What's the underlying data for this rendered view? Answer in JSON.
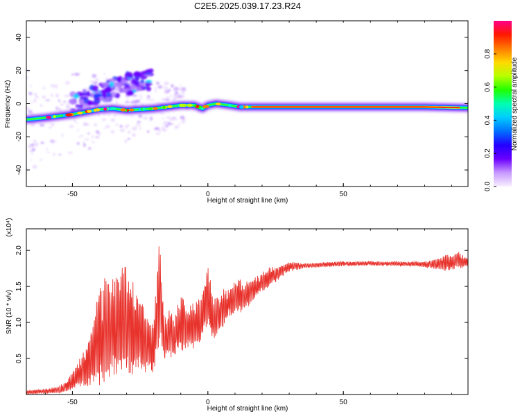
{
  "figure": {
    "title": "C2E5.2025.039.17.23.R24"
  },
  "chart_data": [
    {
      "type": "heatmap",
      "xlabel": "Height of straight line (km)",
      "ylabel": "Frequency (Hz)",
      "xlim": [
        -67,
        96
      ],
      "ylim": [
        -50,
        50
      ],
      "xticks": [
        -50,
        0,
        50
      ],
      "yticks": [
        -40,
        -20,
        0,
        20,
        40
      ],
      "grid": false,
      "colorbar": {
        "label": "Normalized spectral amplitude",
        "range": [
          0,
          1
        ],
        "ticks": [
          "0.0",
          "0.2",
          "0.4",
          "0.6",
          "0.8"
        ],
        "colormap": [
          "#f8f0ff",
          "#c899ff",
          "#6a00ff",
          "#2200ff",
          "#0070ff",
          "#00ccff",
          "#00ffb0",
          "#20ff00",
          "#b8ff00",
          "#ffd800",
          "#ff7a00",
          "#ff1800",
          "#ff0088"
        ]
      },
      "main_trace": [
        {
          "x": -66,
          "f": -9.5
        },
        {
          "x": -60,
          "f": -8.5
        },
        {
          "x": -55,
          "f": -7.5
        },
        {
          "x": -50,
          "f": -6.5
        },
        {
          "x": -45,
          "f": -5
        },
        {
          "x": -40,
          "f": -3.5
        },
        {
          "x": -35,
          "f": -3
        },
        {
          "x": -30,
          "f": -4
        },
        {
          "x": -25,
          "f": -3.5
        },
        {
          "x": -20,
          "f": -3
        },
        {
          "x": -15,
          "f": -2
        },
        {
          "x": -10,
          "f": -1
        },
        {
          "x": -5,
          "f": -1
        },
        {
          "x": -2,
          "f": -3
        },
        {
          "x": 0,
          "f": -1
        },
        {
          "x": 3,
          "f": 0
        },
        {
          "x": 8,
          "f": -1
        },
        {
          "x": 12,
          "f": -2
        },
        {
          "x": 20,
          "f": -2
        },
        {
          "x": 40,
          "f": -2
        },
        {
          "x": 60,
          "f": -2
        },
        {
          "x": 80,
          "f": -2
        },
        {
          "x": 96,
          "f": -2.5
        }
      ],
      "upper_branch": [
        {
          "x": -50,
          "f": 0
        },
        {
          "x": -45,
          "f": 2
        },
        {
          "x": -40,
          "f": 6
        },
        {
          "x": -35,
          "f": 9
        },
        {
          "x": -30,
          "f": 12
        },
        {
          "x": -25,
          "f": 13
        },
        {
          "x": -21,
          "f": 14
        }
      ]
    },
    {
      "type": "line",
      "xlabel": "Height of straight line (km)",
      "ylabel": "SNR (10 * v/v)",
      "y_multiplier": "(x10⁴)",
      "xlim": [
        -67,
        96
      ],
      "ylim": [
        0,
        2.3
      ],
      "xticks": [
        -50,
        0,
        50
      ],
      "yticks": [
        "0.5",
        "1.0",
        "1.5",
        "2.0"
      ],
      "grid": false,
      "series_color": "#e8322c",
      "envelope_x": [
        -67,
        -60,
        -55,
        -52,
        -48,
        -45,
        -42,
        -40,
        -37,
        -35,
        -32,
        -30,
        -27,
        -25,
        -22,
        -20,
        -18,
        -16,
        -14,
        -12,
        -10,
        -8,
        -6,
        -4,
        -2,
        0,
        2,
        5,
        8,
        10,
        13,
        15,
        18,
        20,
        23,
        25,
        28,
        30,
        35,
        40,
        45,
        50,
        60,
        70,
        80,
        85,
        88,
        90,
        92,
        94,
        96
      ],
      "envelope_high": [
        0.06,
        0.08,
        0.12,
        0.22,
        0.45,
        0.7,
        1.1,
        1.6,
        1.65,
        1.75,
        1.9,
        1.95,
        1.5,
        1.4,
        1.1,
        1.0,
        2.3,
        1.05,
        1.25,
        1.1,
        1.5,
        1.2,
        1.3,
        1.35,
        1.4,
        1.85,
        1.3,
        1.45,
        1.5,
        1.6,
        1.6,
        1.6,
        1.65,
        1.7,
        1.8,
        1.78,
        1.8,
        1.85,
        1.82,
        1.83,
        1.84,
        1.85,
        1.85,
        1.85,
        1.85,
        1.9,
        1.95,
        1.92,
        2.0,
        1.95,
        1.92
      ],
      "envelope_low": [
        0.0,
        0.01,
        0.01,
        0.03,
        0.08,
        0.1,
        0.15,
        0.12,
        0.15,
        0.2,
        0.2,
        0.3,
        0.2,
        0.3,
        0.3,
        0.15,
        0.7,
        0.45,
        0.5,
        0.5,
        0.55,
        0.6,
        0.6,
        0.7,
        0.7,
        0.85,
        0.7,
        0.9,
        1.05,
        1.1,
        1.15,
        1.2,
        1.35,
        1.4,
        1.5,
        1.55,
        1.65,
        1.7,
        1.75,
        1.76,
        1.77,
        1.78,
        1.79,
        1.78,
        1.77,
        1.72,
        1.7,
        1.72,
        1.75,
        1.72,
        1.78
      ]
    }
  ]
}
